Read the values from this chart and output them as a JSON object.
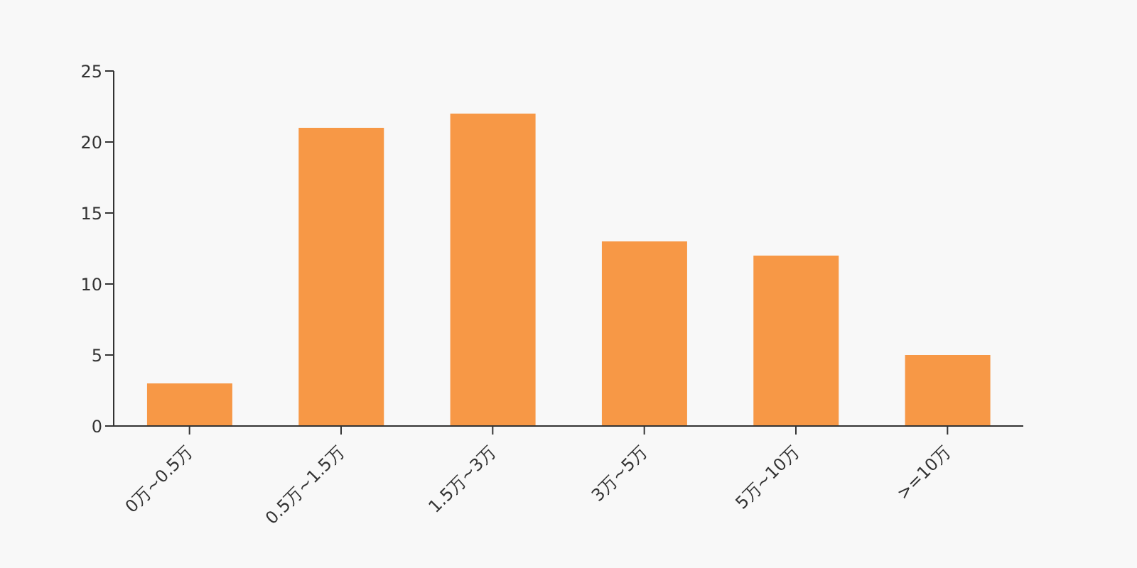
{
  "chart_data": {
    "type": "bar",
    "categories": [
      "0万~0.5万",
      "0.5万~1.5万",
      "1.5万~3万",
      "3万~5万",
      "5万~10万",
      ">=10万"
    ],
    "values": [
      3,
      21,
      22,
      13,
      12,
      5
    ],
    "color": "#f79846",
    "ylim": [
      0,
      25
    ],
    "yticks": [
      0,
      5,
      10,
      15,
      20,
      25
    ],
    "grid": false,
    "legend": false
  }
}
